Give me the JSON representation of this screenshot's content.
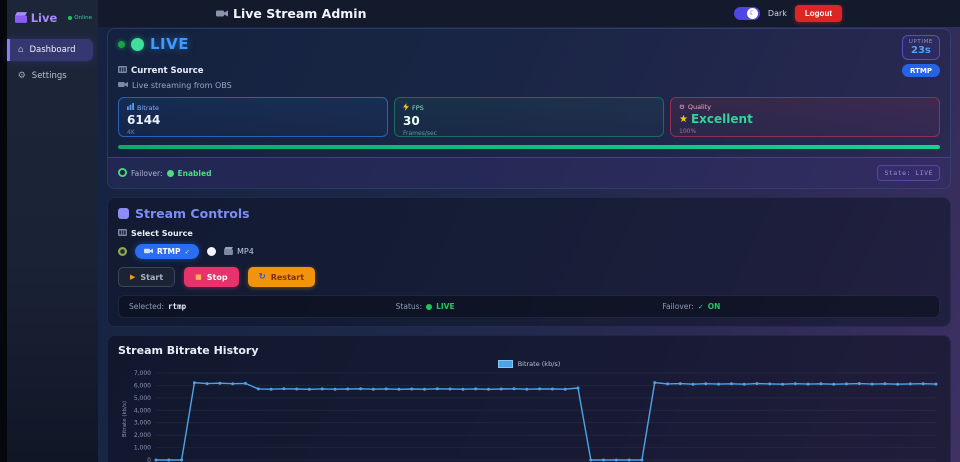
{
  "sidebar": {
    "logo_text": "Live",
    "status": "Online",
    "items": [
      {
        "label": "Dashboard",
        "active": true
      },
      {
        "label": "Settings",
        "active": false
      }
    ]
  },
  "topbar": {
    "title": "Live Stream Admin",
    "theme_label": "Dark",
    "logout_label": "Logout"
  },
  "status_panel": {
    "live_label": "LIVE",
    "uptime_label": "UPTIME",
    "uptime_value": "23s",
    "current_source_label": "Current Source",
    "source_description": "Live streaming from OBS",
    "protocol_badge": "RTMP",
    "cards": [
      {
        "label": "Bitrate",
        "value": "6144",
        "sub": "4K"
      },
      {
        "label": "FPS",
        "value": "30",
        "sub": "Frames/sec"
      },
      {
        "label": "Quality",
        "value": "Excellent",
        "sub": "100%"
      }
    ],
    "progress_percent": 100,
    "failover_label": "Failover:",
    "failover_value": "Enabled",
    "state_badge": "State: LIVE"
  },
  "controls_panel": {
    "title": "Stream Controls",
    "select_source_label": "Select Source",
    "options": [
      {
        "label": "RTMP",
        "selected": true
      },
      {
        "label": "MP4",
        "selected": false
      }
    ],
    "buttons": {
      "start": "Start",
      "stop": "Stop",
      "restart": "Restart"
    },
    "status_bar": {
      "selected_label": "Selected:",
      "selected_value": "rtmp",
      "status_label": "Status:",
      "status_value": "LIVE",
      "failover_label": "Failover:",
      "failover_value": "ON"
    }
  },
  "glyphs": {
    "check": "✓",
    "play": "▶",
    "stop": "■",
    "restart": "↻",
    "moon": "☾",
    "home": "⌂",
    "gear": "⚙",
    "star": "★"
  },
  "colors": {
    "accent_purple": "#8b7cf8",
    "live_blue": "#3d9bff",
    "status_green": "#22c55e",
    "danger_red": "#dc2626",
    "rtmp_blue": "#2563eb",
    "stop_pink": "#e8326c",
    "restart_orange": "#f2930d",
    "progress_green": "#10b981"
  },
  "chart_panel": {
    "title": "Stream Bitrate History"
  },
  "chart_data": {
    "type": "line",
    "title": "Stream Bitrate History",
    "legend": [
      "Bitrate (kb/s)"
    ],
    "ylabel": "Bitrate (kb/s)",
    "ylim": [
      0,
      7000
    ],
    "ytick_step": 1000,
    "grid": true,
    "legend_position": "top-center",
    "line_color": "#4da3e8",
    "x": "samples (unlabeled axis)",
    "values": [
      0,
      0,
      0,
      6220,
      6150,
      6180,
      6140,
      6160,
      5720,
      5700,
      5730,
      5710,
      5690,
      5720,
      5700,
      5710,
      5730,
      5700,
      5720,
      5690,
      5710,
      5700,
      5730,
      5710,
      5700,
      5720,
      5690,
      5710,
      5730,
      5700,
      5720,
      5710,
      5700,
      5790,
      0,
      0,
      0,
      0,
      0,
      6230,
      6120,
      6150,
      6100,
      6140,
      6110,
      6130,
      6100,
      6150,
      6120,
      6100,
      6140,
      6110,
      6130,
      6100,
      6120,
      6150,
      6110,
      6130,
      6100,
      6120,
      6140,
      6110
    ]
  }
}
